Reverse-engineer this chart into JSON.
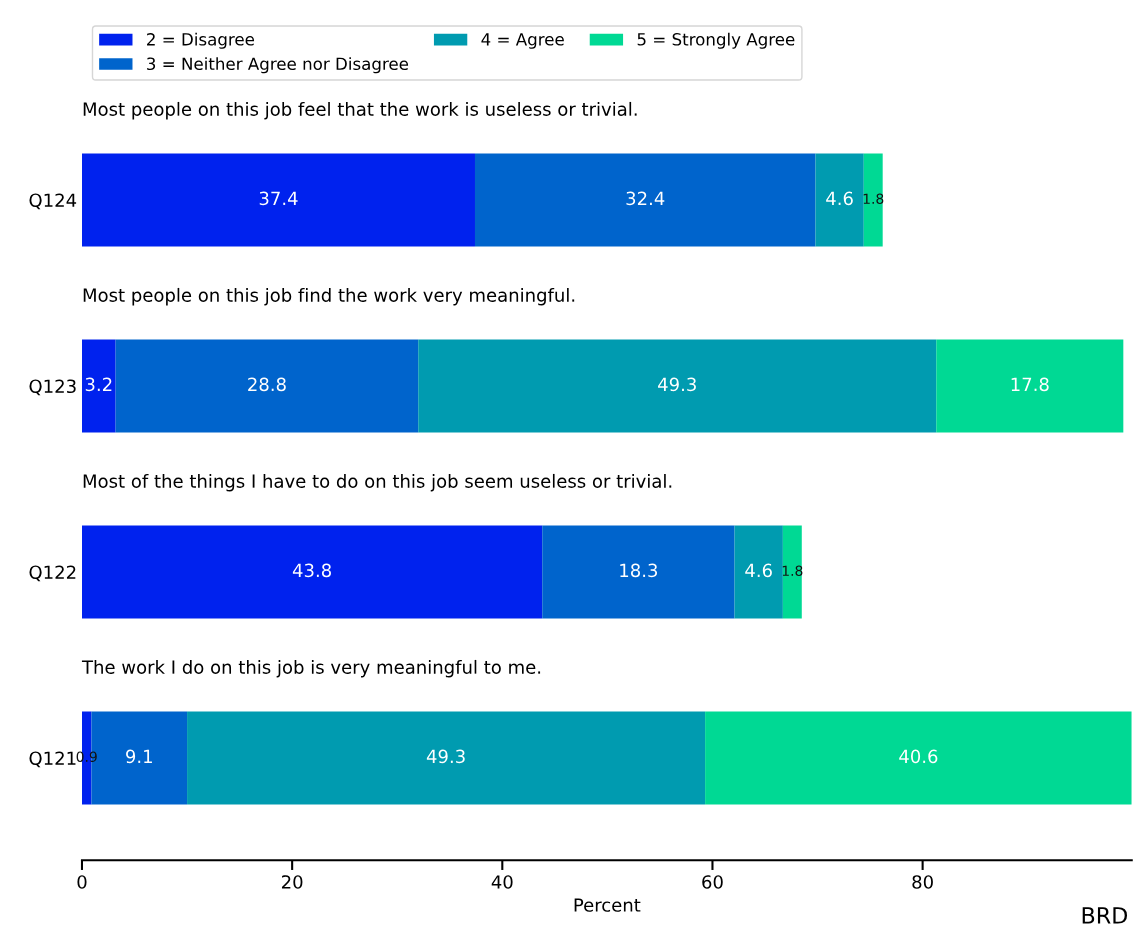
{
  "chart_data": {
    "type": "bar",
    "orientation": "horizontal",
    "stacked": true,
    "xlabel": "Percent",
    "categories": [
      "Q124",
      "Q123",
      "Q122",
      "Q121"
    ],
    "series": [
      {
        "name": "2 = Disagree",
        "color": "#0022ee",
        "values": [
          37.4,
          3.2,
          43.8,
          0.9
        ]
      },
      {
        "name": "3 = Neither Agree nor Disagree",
        "color": "#0064cc",
        "values": [
          32.4,
          28.8,
          18.3,
          9.1
        ]
      },
      {
        "name": "4 = Agree",
        "color": "#009bb0",
        "values": [
          4.6,
          49.3,
          4.6,
          49.3
        ]
      },
      {
        "name": "5 = Strongly Agree",
        "color": "#00d994",
        "values": [
          1.8,
          17.8,
          1.8,
          40.6
        ]
      }
    ],
    "xlim": [
      0,
      99.9
    ],
    "xticks": [
      0,
      20,
      40,
      60,
      80
    ],
    "data_labels": true,
    "legend": "top",
    "grid": false,
    "annotations": [
      "Most people on this job feel that the work is useless or trivial.",
      "Most people on this job find the work very meaningful.",
      "Most of the things I have to do on this job seem useless or trivial.",
      "The work I do on this job is very meaningful to me.",
      "BRD"
    ]
  }
}
